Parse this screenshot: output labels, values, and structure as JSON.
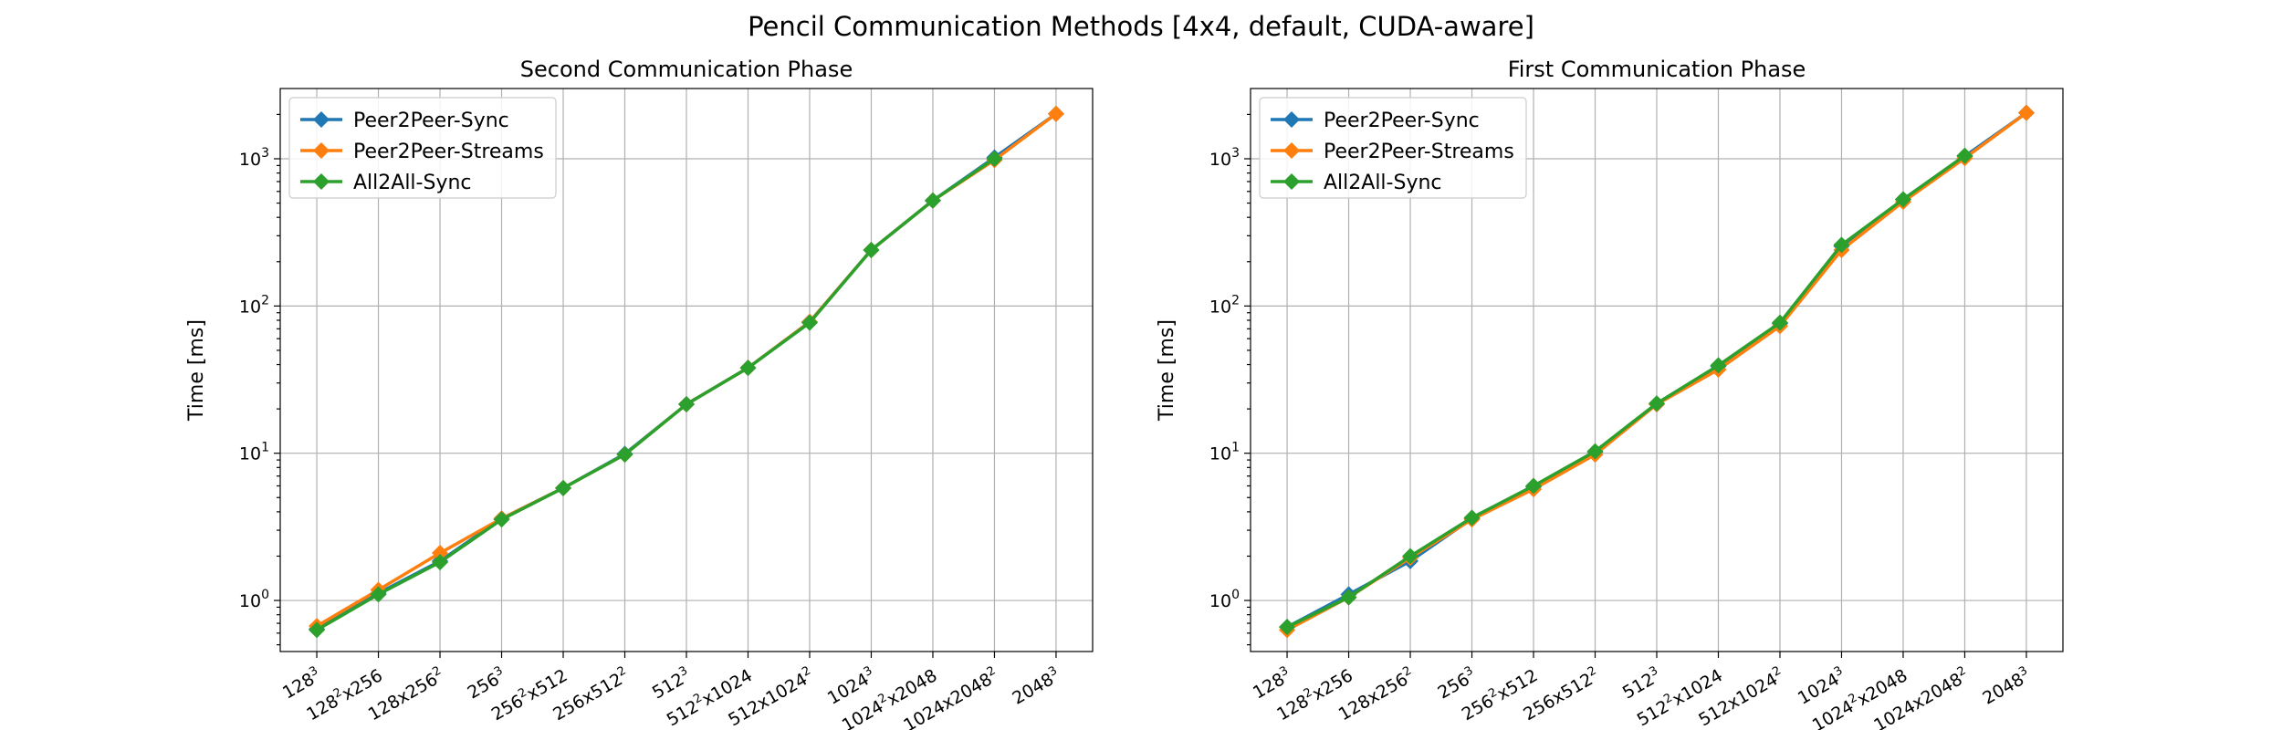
{
  "figure": {
    "suptitle": "Pencil Communication Methods [4x4, default, CUDA-aware]"
  },
  "chart_data": [
    {
      "type": "line",
      "title": "Second Communication Phase",
      "xlabel": "",
      "ylabel": "Time [ms]",
      "yscale": "log",
      "ylim": [
        0.45,
        3000
      ],
      "yticks": [
        {
          "value": 1,
          "base": "10",
          "exp": "0"
        },
        {
          "value": 10,
          "base": "10",
          "exp": "1"
        },
        {
          "value": 100,
          "base": "10",
          "exp": "2"
        },
        {
          "value": 1000,
          "base": "10",
          "exp": "3"
        }
      ],
      "grid": true,
      "legend_position": "top-left",
      "categories": [
        {
          "base": "128",
          "sup": "3",
          "rest": ""
        },
        {
          "base": "128",
          "sup": "2",
          "rest": "x256"
        },
        {
          "base": "128x256",
          "sup": "2",
          "rest": ""
        },
        {
          "base": "256",
          "sup": "3",
          "rest": ""
        },
        {
          "base": "256",
          "sup": "2",
          "rest": "x512"
        },
        {
          "base": "256x512",
          "sup": "2",
          "rest": ""
        },
        {
          "base": "512",
          "sup": "3",
          "rest": ""
        },
        {
          "base": "512",
          "sup": "2",
          "rest": "x1024"
        },
        {
          "base": "512x1024",
          "sup": "2",
          "rest": ""
        },
        {
          "base": "1024",
          "sup": "3",
          "rest": ""
        },
        {
          "base": "1024",
          "sup": "2",
          "rest": "x2048"
        },
        {
          "base": "1024x2048",
          "sup": "2",
          "rest": ""
        },
        {
          "base": "2048",
          "sup": "3",
          "rest": ""
        }
      ],
      "series": [
        {
          "name": "Peer2Peer-Sync",
          "color": "#1f77b4",
          "values": [
            0.64,
            1.12,
            1.85,
            3.6,
            5.8,
            9.9,
            21.5,
            38,
            78,
            240,
            520,
            1020,
            2020
          ]
        },
        {
          "name": "Peer2Peer-Streams",
          "color": "#ff7f0e",
          "values": [
            0.67,
            1.18,
            2.1,
            3.6,
            5.8,
            9.8,
            21.5,
            38,
            78,
            240,
            520,
            980,
            2020
          ]
        },
        {
          "name": "All2All-Sync",
          "color": "#2ca02c",
          "values": [
            0.63,
            1.1,
            1.82,
            3.55,
            5.8,
            9.8,
            21.5,
            38,
            77,
            240,
            520,
            1000,
            null
          ]
        }
      ]
    },
    {
      "type": "line",
      "title": "First Communication Phase",
      "xlabel": "",
      "ylabel": "Time [ms]",
      "yscale": "log",
      "ylim": [
        0.45,
        3000
      ],
      "yticks": [
        {
          "value": 1,
          "base": "10",
          "exp": "0"
        },
        {
          "value": 10,
          "base": "10",
          "exp": "1"
        },
        {
          "value": 100,
          "base": "10",
          "exp": "2"
        },
        {
          "value": 1000,
          "base": "10",
          "exp": "3"
        }
      ],
      "grid": true,
      "legend_position": "top-left",
      "categories": [
        {
          "base": "128",
          "sup": "3",
          "rest": ""
        },
        {
          "base": "128",
          "sup": "2",
          "rest": "x256"
        },
        {
          "base": "128x256",
          "sup": "2",
          "rest": ""
        },
        {
          "base": "256",
          "sup": "3",
          "rest": ""
        },
        {
          "base": "256",
          "sup": "2",
          "rest": "x512"
        },
        {
          "base": "256x512",
          "sup": "2",
          "rest": ""
        },
        {
          "base": "512",
          "sup": "3",
          "rest": ""
        },
        {
          "base": "512",
          "sup": "2",
          "rest": "x1024"
        },
        {
          "base": "512x1024",
          "sup": "2",
          "rest": ""
        },
        {
          "base": "1024",
          "sup": "3",
          "rest": ""
        },
        {
          "base": "1024",
          "sup": "2",
          "rest": "x2048"
        },
        {
          "base": "1024x2048",
          "sup": "2",
          "rest": ""
        },
        {
          "base": "2048",
          "sup": "3",
          "rest": ""
        }
      ],
      "series": [
        {
          "name": "Peer2Peer-Sync",
          "color": "#1f77b4",
          "values": [
            0.66,
            1.1,
            1.85,
            3.6,
            5.9,
            10.2,
            21.5,
            39,
            76,
            255,
            530,
            1040,
            2050
          ]
        },
        {
          "name": "Peer2Peer-Streams",
          "color": "#ff7f0e",
          "values": [
            0.63,
            1.05,
            1.95,
            3.55,
            5.7,
            9.8,
            21.5,
            37,
            73,
            240,
            510,
            1010,
            2050
          ]
        },
        {
          "name": "All2All-Sync",
          "color": "#2ca02c",
          "values": [
            0.66,
            1.05,
            2.0,
            3.65,
            6.0,
            10.3,
            21.8,
            39.5,
            77,
            260,
            530,
            1050,
            null
          ]
        }
      ]
    }
  ]
}
